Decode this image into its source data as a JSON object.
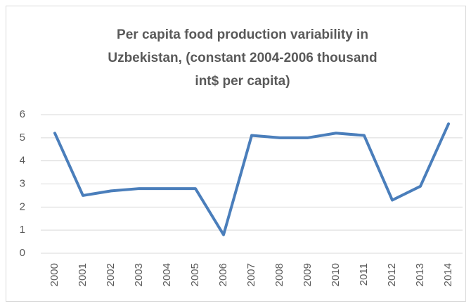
{
  "chart_data": {
    "type": "line",
    "title": [
      "Per capita food production variability in",
      "Uzbekistan, (constant 2004-2006 thousand",
      "int$ per capita)"
    ],
    "categories": [
      "2000",
      "2001",
      "2002",
      "2003",
      "2004",
      "2005",
      "2006",
      "2007",
      "2008",
      "2009",
      "2010",
      "2011",
      "2012",
      "2013",
      "2014"
    ],
    "values": [
      5.2,
      2.5,
      2.7,
      2.8,
      2.8,
      2.8,
      0.8,
      5.1,
      5.0,
      5.0,
      5.2,
      5.1,
      2.3,
      2.9,
      5.6
    ],
    "color": "#4a7ebb",
    "ylim": [
      0,
      6
    ],
    "yticks": [
      0,
      1,
      2,
      3,
      4,
      5,
      6
    ],
    "grid": true
  }
}
